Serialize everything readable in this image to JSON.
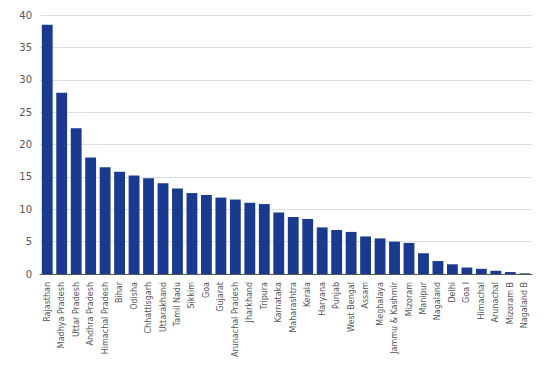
{
  "chart_data": {
    "type": "bar",
    "categories": [
      "Rajasthan",
      "Madhya Pradesh",
      "Uttar Pradesh",
      "Andhra Pradesh",
      "Himachal Pradesh",
      "Bihar",
      "Odisha",
      "Chhattisgarh",
      "Uttarakhand",
      "Tamil Nadu",
      "Sikkim",
      "Goa",
      "Gujarat",
      "Arunachal Pradesh",
      "Jharkhand",
      "Tripura",
      "Karnataka",
      "Maharashtra",
      "Kerala",
      "Haryana",
      "Punjab",
      "West Bengal",
      "Assam",
      "Meghalaya",
      "Jammu & Kashmir",
      "Mizoram",
      "Manipur",
      "Nagaland",
      "Delhi",
      "Goa I",
      "Himachal",
      "Arunachal",
      "Mizoram B",
      "Nagaland B"
    ],
    "values": [
      38.5,
      28.0,
      22.5,
      18.0,
      16.5,
      15.8,
      15.2,
      14.8,
      14.0,
      13.2,
      12.5,
      12.2,
      11.8,
      11.5,
      11.0,
      10.8,
      9.5,
      8.8,
      8.5,
      7.2,
      6.8,
      6.5,
      5.8,
      5.5,
      5.0,
      4.8,
      3.2,
      2.0,
      1.5,
      1.0,
      0.8,
      0.5,
      0.3,
      0.1
    ],
    "color": "#1a3a8f",
    "ylim": [
      0,
      40
    ],
    "yticks": [
      0,
      5,
      10,
      15,
      20,
      25,
      30,
      35,
      40
    ],
    "grid": true
  }
}
